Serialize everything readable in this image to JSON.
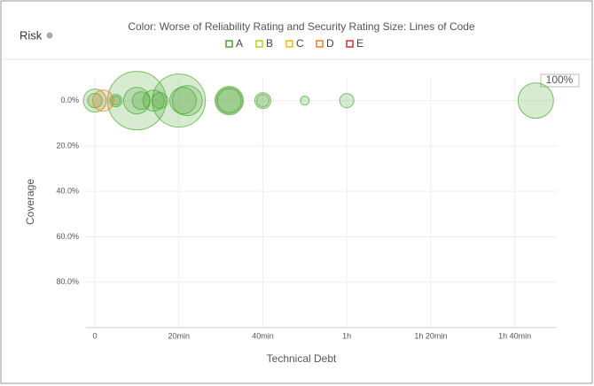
{
  "header": {
    "title": "Risk"
  },
  "chart_data": {
    "type": "scatter",
    "title": "Color: Worse of Reliability Rating and Security Rating  Size: Lines of Code",
    "zoom_label": "100%",
    "xlabel": "Technical Debt",
    "ylabel": "Coverage",
    "xlim": [
      0,
      110
    ],
    "xticks": [
      0,
      {
        "value": 20,
        "label": "20min"
      },
      {
        "value": 40,
        "label": "40min"
      },
      {
        "value": 60,
        "label": "1h"
      },
      {
        "value": 80,
        "label": "1h 20min"
      },
      {
        "value": 100,
        "label": "1h 40min"
      }
    ],
    "ylim": [
      -10,
      100
    ],
    "yticks": [
      {
        "value": 0,
        "label": "0.0%"
      },
      {
        "value": 20,
        "label": "20.0%"
      },
      {
        "value": 40,
        "label": "40.0%"
      },
      {
        "value": 60,
        "label": "60.0%"
      },
      {
        "value": 80,
        "label": "80.0%"
      }
    ],
    "grid": true,
    "series": [
      {
        "name": "A",
        "color": "#4aa62f",
        "x": [
          0,
          0,
          5,
          5,
          10,
          10,
          11,
          14,
          15.5,
          20,
          21,
          22,
          32,
          32,
          32,
          40,
          40,
          50,
          60,
          105
        ],
        "values": [
          0,
          0,
          0,
          0,
          0,
          0,
          0,
          0,
          0,
          0,
          0,
          0,
          0,
          0,
          0,
          0,
          0,
          0,
          0,
          0
        ],
        "sizes": [
          310,
          120,
          90,
          45,
          2000,
          413,
          184,
          265,
          150,
          1650,
          413,
          530,
          470,
          400,
          330,
          150,
          90,
          46,
          118,
          735
        ]
      },
      {
        "name": "B",
        "color": "#b0d513",
        "x": [],
        "values": [],
        "sizes": []
      },
      {
        "name": "C",
        "color": "#eabe06",
        "x": [],
        "values": [],
        "sizes": []
      },
      {
        "name": "D",
        "color": "#ed7d20",
        "x": [
          2
        ],
        "values": [
          0
        ],
        "sizes": [
          265
        ]
      },
      {
        "name": "E",
        "color": "#d02f3a",
        "x": [],
        "values": [],
        "sizes": []
      }
    ]
  }
}
